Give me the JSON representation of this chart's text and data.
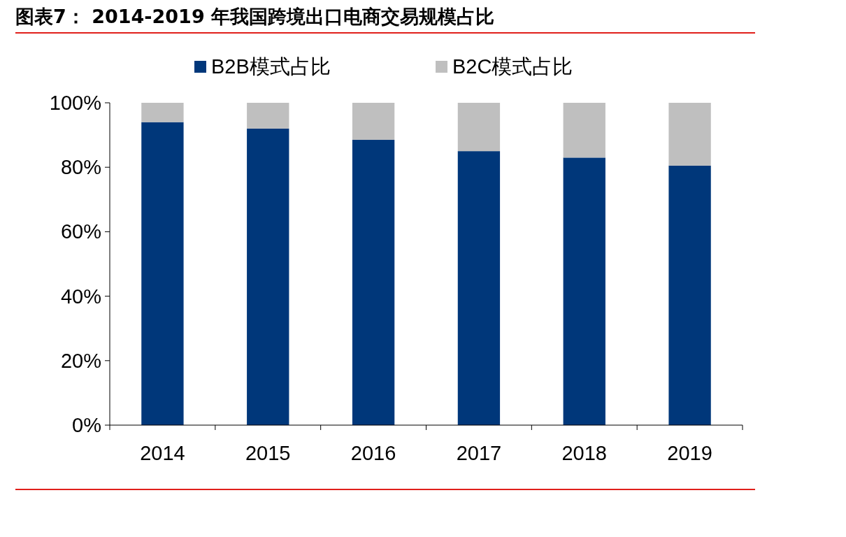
{
  "chart_data": {
    "type": "bar",
    "title": "图表7： 2014-2019 年我国跨境出口电商交易规模占比",
    "categories": [
      "2014",
      "2015",
      "2016",
      "2017",
      "2018",
      "2019"
    ],
    "series": [
      {
        "name": "B2B模式占比",
        "color": "#00377a",
        "values": [
          94,
          92,
          88.5,
          85,
          83,
          80.5
        ]
      },
      {
        "name": "B2C模式占比",
        "color": "#bfbfbf",
        "values": [
          6,
          8,
          11.5,
          15,
          17,
          19.5
        ]
      }
    ],
    "stacked": true,
    "ylim": [
      0,
      100
    ],
    "yticks": [
      {
        "value": 0,
        "label": "0%"
      },
      {
        "value": 20,
        "label": "20%"
      },
      {
        "value": 40,
        "label": "40%"
      },
      {
        "value": 60,
        "label": "60%"
      },
      {
        "value": 80,
        "label": "80%"
      },
      {
        "value": 100,
        "label": "100%"
      }
    ],
    "legend": "top",
    "grid": false
  }
}
